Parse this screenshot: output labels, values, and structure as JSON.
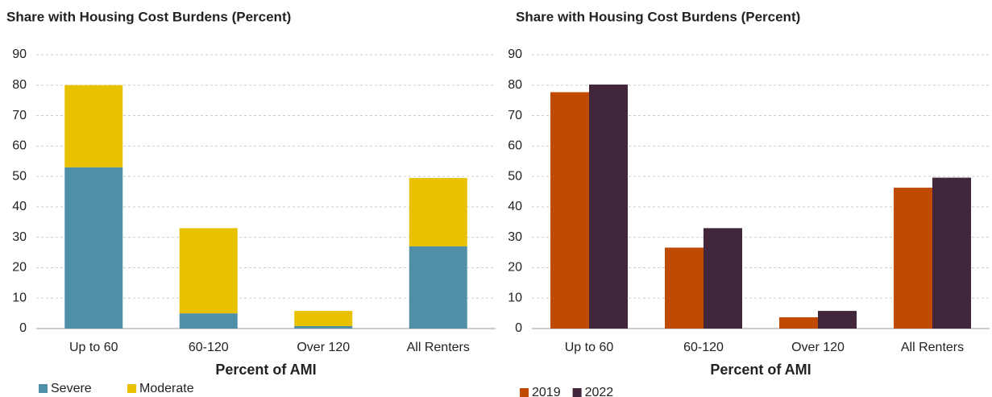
{
  "chart_data": [
    {
      "type": "bar",
      "stacked": true,
      "title": "Share with Housing Cost Burdens (Percent)",
      "xlabel": "Percent of AMI",
      "categories": [
        "Up to 60",
        "60-120",
        "Over 120",
        "All Renters"
      ],
      "series": [
        {
          "name": "Severe",
          "color": "#4f8fa8",
          "values": [
            53,
            5,
            0.8,
            27
          ]
        },
        {
          "name": "Moderate",
          "color": "#e8c100",
          "values": [
            27,
            28,
            5,
            22.5
          ]
        }
      ],
      "ylim": [
        0,
        90
      ],
      "yticks": [
        0,
        10,
        20,
        30,
        40,
        50,
        60,
        70,
        80,
        90
      ],
      "grid": true
    },
    {
      "type": "bar",
      "stacked": false,
      "title": "Share with Housing Cost Burdens (Percent)",
      "xlabel": "Percent of AMI",
      "categories": [
        "Up to 60",
        "60-120",
        "Over 120",
        "All Renters"
      ],
      "series": [
        {
          "name": "2019",
          "color": "#c04b00",
          "values": [
            77.7,
            26.6,
            3.7,
            46.3
          ]
        },
        {
          "name": "2022",
          "color": "#42263c",
          "values": [
            80.2,
            33,
            5.8,
            49.6
          ]
        }
      ],
      "ylim": [
        0,
        90
      ],
      "yticks": [
        0,
        10,
        20,
        30,
        40,
        50,
        60,
        70,
        80,
        90
      ],
      "grid": true
    }
  ]
}
